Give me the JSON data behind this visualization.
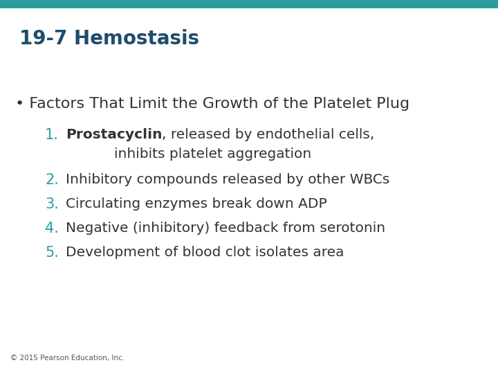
{
  "title": "19-7 Hemostasis",
  "title_color": "#1e4d6b",
  "title_fontsize": 20,
  "background_color": "#ffffff",
  "top_bar_color": "#2a9d9e",
  "bullet_text": "Factors That Limit the Growth of the Platelet Plug",
  "bullet_color": "#333333",
  "bullet_fontsize": 16,
  "number_color": "#2a9d9e",
  "number_fontsize": 15,
  "items": [
    {
      "num": "1.",
      "bold_part": "Prostacyclin",
      "rest": ", released by endothelial cells,",
      "continuation": "inhibits platelet aggregation",
      "has_continuation": true
    },
    {
      "num": "2.",
      "bold_part": "",
      "rest": "Inhibitory compounds released by other WBCs",
      "continuation": "",
      "has_continuation": false
    },
    {
      "num": "3.",
      "bold_part": "",
      "rest": "Circulating enzymes break down ADP",
      "continuation": "",
      "has_continuation": false
    },
    {
      "num": "4.",
      "bold_part": "",
      "rest": "Negative (inhibitory) feedback from serotonin",
      "continuation": "",
      "has_continuation": false
    },
    {
      "num": "5.",
      "bold_part": "",
      "rest": "Development of blood clot isolates area",
      "continuation": "",
      "has_continuation": false
    }
  ],
  "footer_text": "© 2015 Pearson Education, Inc.",
  "footer_fontsize": 7.5,
  "footer_color": "#555555",
  "item_text_color": "#333333",
  "item_fontsize": 14.5
}
